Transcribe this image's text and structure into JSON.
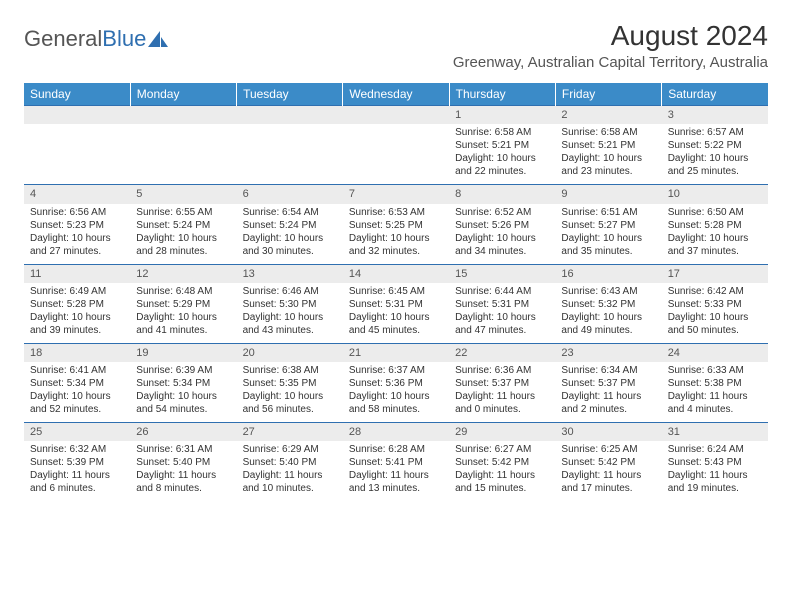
{
  "logo": {
    "part1": "General",
    "part2": "Blue"
  },
  "title": "August 2024",
  "location": "Greenway, Australian Capital Territory, Australia",
  "weekdays": [
    "Sunday",
    "Monday",
    "Tuesday",
    "Wednesday",
    "Thursday",
    "Friday",
    "Saturday"
  ],
  "colors": {
    "header_bg": "#3b8bc8",
    "header_text": "#ffffff",
    "daynum_bg": "#ececec",
    "border": "#2f6fb0",
    "text": "#333333",
    "logo_gray": "#555555",
    "logo_blue": "#2f6fb0"
  },
  "weeks": [
    [
      null,
      null,
      null,
      null,
      {
        "n": "1",
        "sr": "6:58 AM",
        "ss": "5:21 PM",
        "dl": "10 hours and 22 minutes."
      },
      {
        "n": "2",
        "sr": "6:58 AM",
        "ss": "5:21 PM",
        "dl": "10 hours and 23 minutes."
      },
      {
        "n": "3",
        "sr": "6:57 AM",
        "ss": "5:22 PM",
        "dl": "10 hours and 25 minutes."
      }
    ],
    [
      {
        "n": "4",
        "sr": "6:56 AM",
        "ss": "5:23 PM",
        "dl": "10 hours and 27 minutes."
      },
      {
        "n": "5",
        "sr": "6:55 AM",
        "ss": "5:24 PM",
        "dl": "10 hours and 28 minutes."
      },
      {
        "n": "6",
        "sr": "6:54 AM",
        "ss": "5:24 PM",
        "dl": "10 hours and 30 minutes."
      },
      {
        "n": "7",
        "sr": "6:53 AM",
        "ss": "5:25 PM",
        "dl": "10 hours and 32 minutes."
      },
      {
        "n": "8",
        "sr": "6:52 AM",
        "ss": "5:26 PM",
        "dl": "10 hours and 34 minutes."
      },
      {
        "n": "9",
        "sr": "6:51 AM",
        "ss": "5:27 PM",
        "dl": "10 hours and 35 minutes."
      },
      {
        "n": "10",
        "sr": "6:50 AM",
        "ss": "5:28 PM",
        "dl": "10 hours and 37 minutes."
      }
    ],
    [
      {
        "n": "11",
        "sr": "6:49 AM",
        "ss": "5:28 PM",
        "dl": "10 hours and 39 minutes."
      },
      {
        "n": "12",
        "sr": "6:48 AM",
        "ss": "5:29 PM",
        "dl": "10 hours and 41 minutes."
      },
      {
        "n": "13",
        "sr": "6:46 AM",
        "ss": "5:30 PM",
        "dl": "10 hours and 43 minutes."
      },
      {
        "n": "14",
        "sr": "6:45 AM",
        "ss": "5:31 PM",
        "dl": "10 hours and 45 minutes."
      },
      {
        "n": "15",
        "sr": "6:44 AM",
        "ss": "5:31 PM",
        "dl": "10 hours and 47 minutes."
      },
      {
        "n": "16",
        "sr": "6:43 AM",
        "ss": "5:32 PM",
        "dl": "10 hours and 49 minutes."
      },
      {
        "n": "17",
        "sr": "6:42 AM",
        "ss": "5:33 PM",
        "dl": "10 hours and 50 minutes."
      }
    ],
    [
      {
        "n": "18",
        "sr": "6:41 AM",
        "ss": "5:34 PM",
        "dl": "10 hours and 52 minutes."
      },
      {
        "n": "19",
        "sr": "6:39 AM",
        "ss": "5:34 PM",
        "dl": "10 hours and 54 minutes."
      },
      {
        "n": "20",
        "sr": "6:38 AM",
        "ss": "5:35 PM",
        "dl": "10 hours and 56 minutes."
      },
      {
        "n": "21",
        "sr": "6:37 AM",
        "ss": "5:36 PM",
        "dl": "10 hours and 58 minutes."
      },
      {
        "n": "22",
        "sr": "6:36 AM",
        "ss": "5:37 PM",
        "dl": "11 hours and 0 minutes."
      },
      {
        "n": "23",
        "sr": "6:34 AM",
        "ss": "5:37 PM",
        "dl": "11 hours and 2 minutes."
      },
      {
        "n": "24",
        "sr": "6:33 AM",
        "ss": "5:38 PM",
        "dl": "11 hours and 4 minutes."
      }
    ],
    [
      {
        "n": "25",
        "sr": "6:32 AM",
        "ss": "5:39 PM",
        "dl": "11 hours and 6 minutes."
      },
      {
        "n": "26",
        "sr": "6:31 AM",
        "ss": "5:40 PM",
        "dl": "11 hours and 8 minutes."
      },
      {
        "n": "27",
        "sr": "6:29 AM",
        "ss": "5:40 PM",
        "dl": "11 hours and 10 minutes."
      },
      {
        "n": "28",
        "sr": "6:28 AM",
        "ss": "5:41 PM",
        "dl": "11 hours and 13 minutes."
      },
      {
        "n": "29",
        "sr": "6:27 AM",
        "ss": "5:42 PM",
        "dl": "11 hours and 15 minutes."
      },
      {
        "n": "30",
        "sr": "6:25 AM",
        "ss": "5:42 PM",
        "dl": "11 hours and 17 minutes."
      },
      {
        "n": "31",
        "sr": "6:24 AM",
        "ss": "5:43 PM",
        "dl": "11 hours and 19 minutes."
      }
    ]
  ]
}
